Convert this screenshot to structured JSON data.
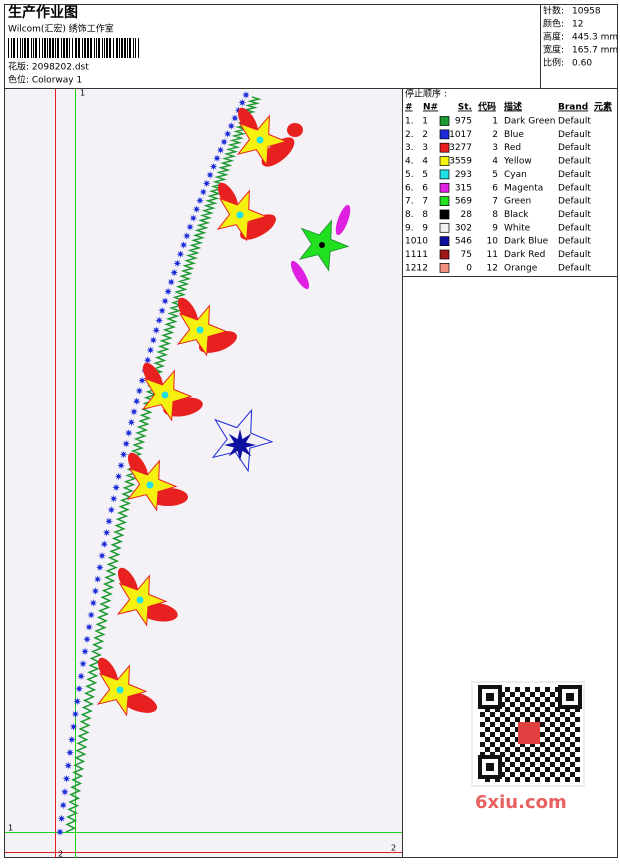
{
  "header": {
    "title": "生产作业图",
    "studio": "Wilcom(汇宏) 绣饰工作室",
    "design": "花版: 2098202.dst",
    "colorway": "色位: Colorway 1"
  },
  "info": [
    [
      "针数:",
      "10958"
    ],
    [
      "颜色:",
      "12"
    ],
    [
      "高度:",
      "445.3 mm"
    ],
    [
      "宽度:",
      "165.7 mm"
    ],
    [
      "比例:",
      "0.60"
    ]
  ],
  "table": {
    "title": "停止顺序 :",
    "columns": [
      "#",
      "N#",
      "St.",
      "代码",
      "描述",
      "Brand",
      "元素"
    ],
    "rows": [
      [
        "1.",
        1,
        "#1e9a32",
        975,
        1,
        "Dark Green",
        "Default"
      ],
      [
        "2.",
        2,
        "#1a2ad8",
        1017,
        2,
        "Blue",
        "Default"
      ],
      [
        "3.",
        3,
        "#e82020",
        3277,
        3,
        "Red",
        "Default"
      ],
      [
        "4.",
        4,
        "#f5f010",
        3559,
        4,
        "Yellow",
        "Default"
      ],
      [
        "5.",
        5,
        "#20e0e8",
        293,
        5,
        "Cyan",
        "Default"
      ],
      [
        "6.",
        6,
        "#e020e0",
        315,
        6,
        "Magenta",
        "Default"
      ],
      [
        "7.",
        7,
        "#20e020",
        569,
        7,
        "Green",
        "Default"
      ],
      [
        "8.",
        8,
        "#000000",
        28,
        8,
        "Black",
        "Default"
      ],
      [
        "9.",
        9,
        "#f0f0f0",
        302,
        9,
        "White",
        "Default"
      ],
      [
        "10.",
        10,
        "#1010a0",
        546,
        10,
        "Dark Blue",
        "Default"
      ],
      [
        "11.",
        11,
        "#a01818",
        75,
        11,
        "Dark Red",
        "Default"
      ],
      [
        "12.",
        12,
        "#f09080",
        0,
        12,
        "Orange",
        "Default"
      ]
    ]
  },
  "axes": {
    "v_green": "1",
    "v_red": "2",
    "h_green": "1",
    "h_red": "2"
  },
  "watermark": "6xiu.com"
}
